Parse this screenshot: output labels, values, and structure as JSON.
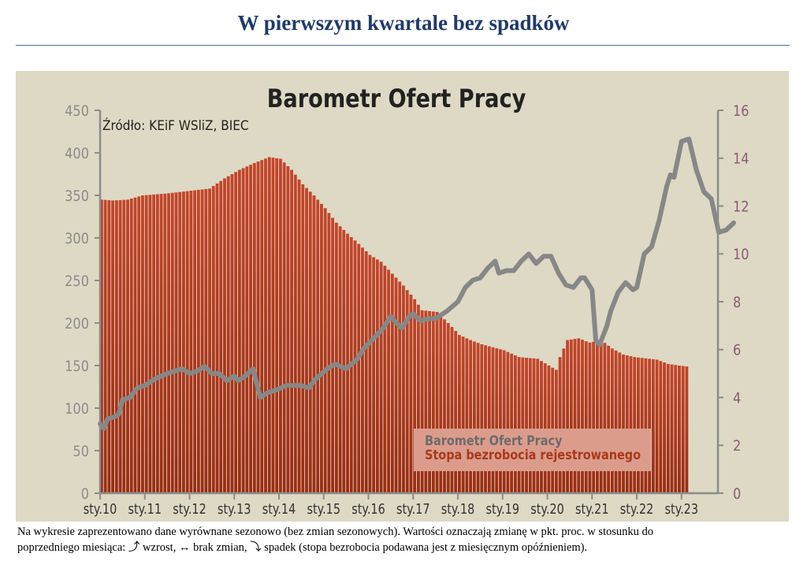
{
  "page": {
    "title": "W pierwszym kwartale bez spadków",
    "caption_line1": "Na wykresie zaprezentowano dane wyrównane sezonowo (bez zmian sezonowych). Wartości oznaczają zmianę w pkt. proc. w stosunku do",
    "caption_line2": "poprzedniego miesiąca: ⤴ wzrost, ↔ brak zmian, ⤵ spadek (stopa bezrobocia podawana jest z miesięcznym opóźnieniem)."
  },
  "colors": {
    "panel_background": "#ddd9c4",
    "bar_color": "#b23a1a",
    "line_color": "#878787",
    "left_axis_color": "#8c8c8c",
    "right_axis_color": "#8c5a78"
  },
  "chart_data": {
    "type": "bar+line",
    "title": "Barometr Ofert Pracy",
    "source_note": "Źródło: KEiF WSliZ, BIEC",
    "x_tick_labels": [
      "sty.10",
      "sty.11",
      "sty.12",
      "sty.13",
      "sty.14",
      "sty.15",
      "sty.16",
      "sty.17",
      "sty.18",
      "sty.19",
      "sty.20",
      "sty.21",
      "sty.22",
      "sty.23"
    ],
    "y_left": {
      "min": 0,
      "max": 450,
      "ticks": [
        0,
        50,
        100,
        150,
        200,
        250,
        300,
        350,
        400,
        450
      ]
    },
    "y_right": {
      "min": 0,
      "max": 16,
      "ticks": [
        0,
        2,
        4,
        6,
        8,
        10,
        12,
        14,
        16
      ]
    },
    "legend": {
      "placement": "bottom-center",
      "entries": [
        "Barometr Ofert Pracy",
        "Stopa bezrobocia rejestrowanego"
      ]
    },
    "grid": false,
    "series": [
      {
        "name": "Stopa bezrobocia rejestrowanego",
        "type": "bar",
        "axis": "left",
        "start": "2010-01",
        "frequency": "monthly",
        "anchors": [
          [
            "2010-01",
            345
          ],
          [
            "2010-04",
            344
          ],
          [
            "2010-08",
            345
          ],
          [
            "2010-12",
            350
          ],
          [
            "2011-06",
            352
          ],
          [
            "2011-12",
            355
          ],
          [
            "2012-06",
            358
          ],
          [
            "2012-10",
            370
          ],
          [
            "2013-02",
            380
          ],
          [
            "2013-06",
            388
          ],
          [
            "2013-10",
            395
          ],
          [
            "2014-01",
            393
          ],
          [
            "2014-04",
            380
          ],
          [
            "2014-07",
            363
          ],
          [
            "2014-10",
            350
          ],
          [
            "2015-01",
            335
          ],
          [
            "2015-04",
            318
          ],
          [
            "2015-07",
            305
          ],
          [
            "2015-10",
            293
          ],
          [
            "2016-01",
            280
          ],
          [
            "2016-04",
            272
          ],
          [
            "2016-07",
            258
          ],
          [
            "2016-10",
            244
          ],
          [
            "2017-01",
            228
          ],
          [
            "2017-03",
            215
          ],
          [
            "2017-07",
            213
          ],
          [
            "2017-10",
            200
          ],
          [
            "2018-01",
            186
          ],
          [
            "2018-04",
            180
          ],
          [
            "2018-07",
            175
          ],
          [
            "2019-01",
            168
          ],
          [
            "2019-05",
            160
          ],
          [
            "2019-10",
            158
          ],
          [
            "2020-01",
            150
          ],
          [
            "2020-03",
            145
          ],
          [
            "2020-04",
            160
          ],
          [
            "2020-06",
            180
          ],
          [
            "2020-09",
            182
          ],
          [
            "2020-12",
            177
          ],
          [
            "2021-03",
            180
          ],
          [
            "2021-06",
            170
          ],
          [
            "2021-09",
            163
          ],
          [
            "2021-12",
            160
          ],
          [
            "2022-06",
            157
          ],
          [
            "2022-09",
            152
          ],
          [
            "2022-12",
            150
          ],
          [
            "2023-02",
            149
          ]
        ]
      },
      {
        "name": "Barometr Ofert Pracy",
        "type": "line",
        "axis": "right",
        "points": [
          [
            "2010-01",
            2.9
          ],
          [
            "2010-02",
            2.7
          ],
          [
            "2010-03",
            3.1
          ],
          [
            "2010-05",
            3.2
          ],
          [
            "2010-06",
            3.3
          ],
          [
            "2010-07",
            3.9
          ],
          [
            "2010-09",
            4.0
          ],
          [
            "2010-11",
            4.4
          ],
          [
            "2011-01",
            4.5
          ],
          [
            "2011-04",
            4.8
          ],
          [
            "2011-07",
            5.0
          ],
          [
            "2011-09",
            5.1
          ],
          [
            "2011-11",
            5.2
          ],
          [
            "2012-01",
            5.0
          ],
          [
            "2012-03",
            5.1
          ],
          [
            "2012-05",
            5.3
          ],
          [
            "2012-07",
            5.0
          ],
          [
            "2012-09",
            5.0
          ],
          [
            "2012-11",
            4.7
          ],
          [
            "2013-01",
            4.9
          ],
          [
            "2013-02",
            4.7
          ],
          [
            "2013-04",
            4.9
          ],
          [
            "2013-06",
            5.2
          ],
          [
            "2013-08",
            4.0
          ],
          [
            "2013-10",
            4.2
          ],
          [
            "2013-12",
            4.3
          ],
          [
            "2014-03",
            4.5
          ],
          [
            "2014-07",
            4.5
          ],
          [
            "2014-09",
            4.4
          ],
          [
            "2014-11",
            4.8
          ],
          [
            "2015-02",
            5.2
          ],
          [
            "2015-04",
            5.4
          ],
          [
            "2015-07",
            5.2
          ],
          [
            "2015-10",
            5.6
          ],
          [
            "2015-12",
            6.1
          ],
          [
            "2016-02",
            6.4
          ],
          [
            "2016-05",
            6.9
          ],
          [
            "2016-07",
            7.4
          ],
          [
            "2016-08",
            7.2
          ],
          [
            "2016-10",
            6.9
          ],
          [
            "2016-12",
            7.4
          ],
          [
            "2017-01",
            7.5
          ],
          [
            "2017-03",
            7.2
          ],
          [
            "2017-05",
            7.3
          ],
          [
            "2017-07",
            7.3
          ],
          [
            "2017-10",
            7.6
          ],
          [
            "2018-01",
            8.0
          ],
          [
            "2018-03",
            8.6
          ],
          [
            "2018-05",
            8.9
          ],
          [
            "2018-07",
            9.0
          ],
          [
            "2018-09",
            9.4
          ],
          [
            "2018-11",
            9.7
          ],
          [
            "2018-12",
            9.2
          ],
          [
            "2019-02",
            9.3
          ],
          [
            "2019-04",
            9.3
          ],
          [
            "2019-06",
            9.7
          ],
          [
            "2019-08",
            10.0
          ],
          [
            "2019-10",
            9.6
          ],
          [
            "2019-12",
            9.9
          ],
          [
            "2020-02",
            9.9
          ],
          [
            "2020-04",
            9.2
          ],
          [
            "2020-06",
            8.7
          ],
          [
            "2020-08",
            8.6
          ],
          [
            "2020-10",
            9.0
          ],
          [
            "2020-11",
            9.0
          ],
          [
            "2021-01",
            8.5
          ],
          [
            "2021-02",
            6.4
          ],
          [
            "2021-03",
            6.2
          ],
          [
            "2021-05",
            7.0
          ],
          [
            "2021-06",
            7.6
          ],
          [
            "2021-08",
            8.4
          ],
          [
            "2021-10",
            8.8
          ],
          [
            "2021-12",
            8.5
          ],
          [
            "2022-01",
            8.6
          ],
          [
            "2022-03",
            10.0
          ],
          [
            "2022-05",
            10.3
          ],
          [
            "2022-07",
            11.4
          ],
          [
            "2022-09",
            12.8
          ],
          [
            "2022-10",
            13.3
          ],
          [
            "2022-11",
            13.2
          ],
          [
            "2023-01",
            14.7
          ],
          [
            "2023-03",
            14.8
          ],
          [
            "2023-05",
            13.5
          ],
          [
            "2023-07",
            12.6
          ],
          [
            "2023-09",
            12.3
          ],
          [
            "2023-11",
            10.9
          ],
          [
            "2024-01",
            11.0
          ],
          [
            "2024-03",
            11.3
          ]
        ]
      }
    ]
  }
}
